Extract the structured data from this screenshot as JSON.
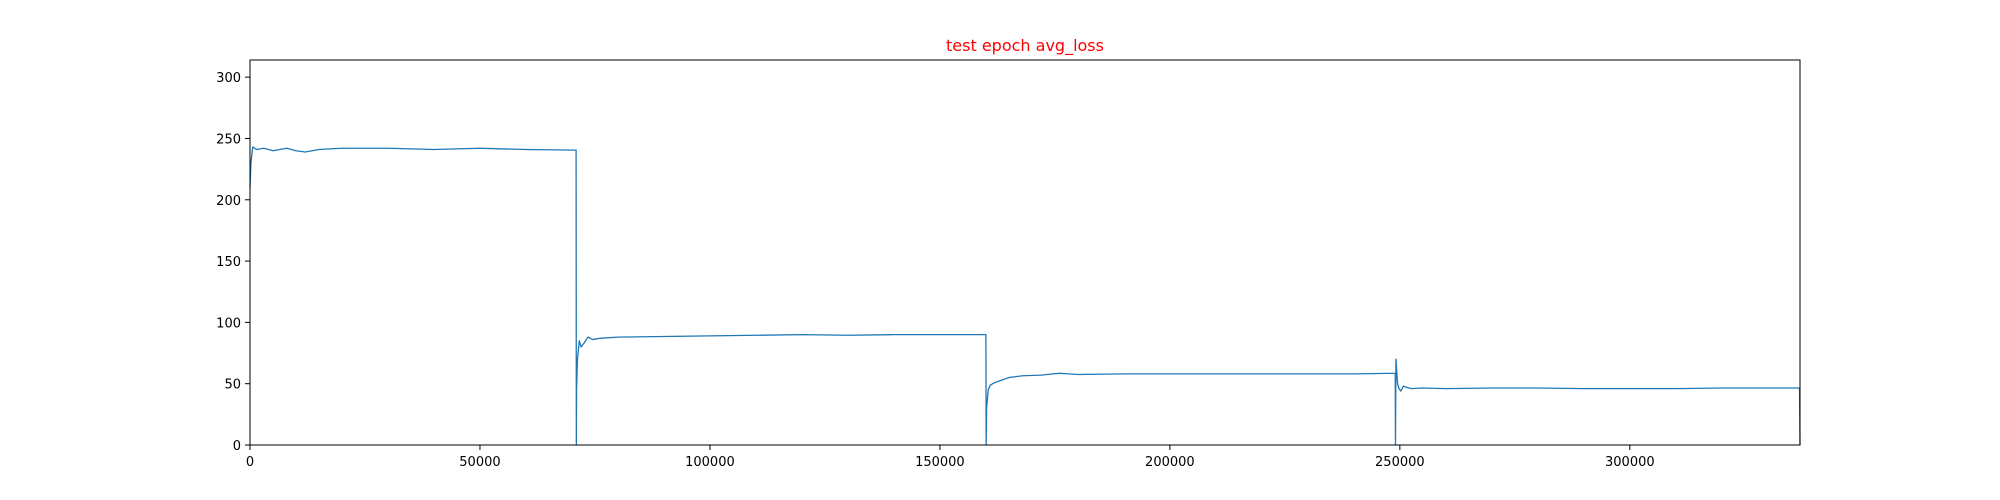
{
  "chart_data": {
    "type": "line",
    "title": "test epoch avg_loss",
    "title_color": "#ff0000",
    "xlabel": "",
    "ylabel": "",
    "xlim": [
      0,
      337000
    ],
    "ylim": [
      0,
      314
    ],
    "grid": false,
    "legend": "none",
    "line_color": "#1f77b4",
    "x_ticks": [
      {
        "value": 0,
        "label": "0"
      },
      {
        "value": 50000,
        "label": "50000"
      },
      {
        "value": 100000,
        "label": "100000"
      },
      {
        "value": 150000,
        "label": "150000"
      },
      {
        "value": 200000,
        "label": "200000"
      },
      {
        "value": 250000,
        "label": "250000"
      },
      {
        "value": 300000,
        "label": "300000"
      }
    ],
    "y_ticks": [
      {
        "value": 0,
        "label": "0"
      },
      {
        "value": 50,
        "label": "50"
      },
      {
        "value": 100,
        "label": "100"
      },
      {
        "value": 150,
        "label": "150"
      },
      {
        "value": 200,
        "label": "200"
      },
      {
        "value": 250,
        "label": "250"
      },
      {
        "value": 300,
        "label": "300"
      }
    ],
    "series": [
      {
        "x": [
          0,
          200,
          600,
          1500,
          3000,
          5000,
          8000,
          10000,
          12000,
          15000,
          20000,
          25000,
          30000,
          40000,
          50000,
          60000,
          70900,
          70950,
          71000,
          71200,
          71600,
          72000,
          72600,
          73500,
          74500,
          76000,
          80000,
          90000,
          100000,
          110000,
          120000,
          130000,
          140000,
          150000,
          160000,
          160050,
          160150,
          160500,
          161000,
          162000,
          163500,
          165000,
          168000,
          172000,
          176000,
          180000,
          190000,
          200000,
          210000,
          220000,
          230000,
          240000,
          249000,
          249050,
          249150,
          249300,
          249500,
          249800,
          250200,
          250800,
          251500,
          252500,
          255000,
          260000,
          270000,
          280000,
          290000,
          300000,
          310000,
          320000,
          330000,
          336900,
          337000
        ],
        "y": [
          210,
          230,
          243,
          241,
          242,
          240,
          242,
          240,
          239,
          241,
          242,
          242,
          242,
          241,
          242,
          241,
          240.5,
          0,
          45,
          70,
          85,
          80,
          83,
          88,
          86,
          87,
          88,
          88.5,
          89,
          89.5,
          90,
          89.5,
          90,
          90,
          90,
          0,
          30,
          45,
          49,
          51,
          53,
          55,
          56.5,
          57,
          58.5,
          57.5,
          58,
          58,
          58,
          58,
          58,
          58,
          58.5,
          0,
          70,
          62,
          50,
          46,
          44,
          48,
          47,
          46,
          46.5,
          46,
          46.5,
          46.5,
          46,
          46,
          46,
          46.5,
          46.5,
          46.5,
          0
        ]
      }
    ]
  }
}
